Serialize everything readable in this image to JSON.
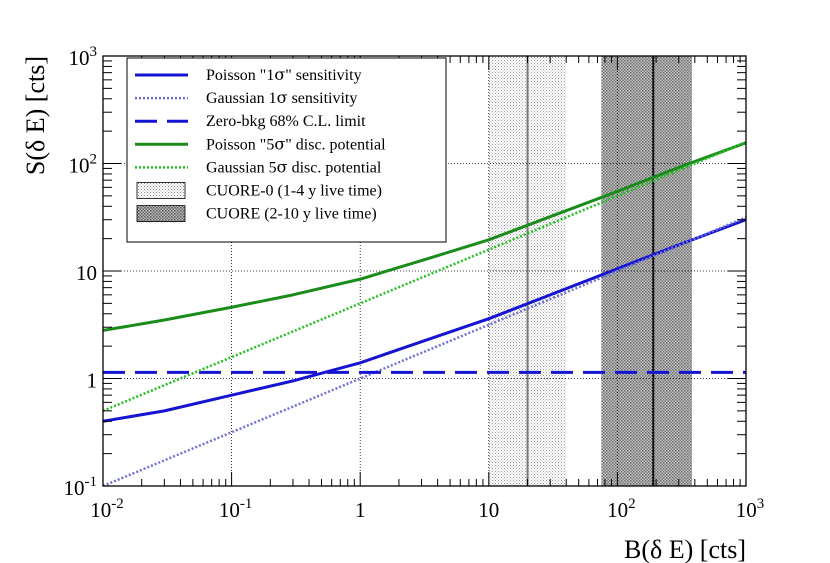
{
  "chart_data": {
    "type": "line",
    "xscale": "log",
    "yscale": "log",
    "xlabel": "B(δ E) [cts]",
    "ylabel": "S(δ E) [cts]",
    "xlim": [
      0.01,
      1000
    ],
    "ylim": [
      0.1,
      1000
    ],
    "grid": true,
    "legend_position": "top-left",
    "x_ticks": [
      {
        "value": 0.01,
        "base": "10",
        "exp": "-2"
      },
      {
        "value": 0.1,
        "base": "10",
        "exp": "-1"
      },
      {
        "value": 1,
        "base": "1",
        "exp": ""
      },
      {
        "value": 10,
        "base": "10",
        "exp": ""
      },
      {
        "value": 100,
        "base": "10",
        "exp": "2"
      },
      {
        "value": 1000,
        "base": "10",
        "exp": "3"
      }
    ],
    "y_ticks": [
      {
        "value": 0.1,
        "base": "10",
        "exp": "-1"
      },
      {
        "value": 1,
        "base": "1",
        "exp": ""
      },
      {
        "value": 10,
        "base": "10",
        "exp": ""
      },
      {
        "value": 100,
        "base": "10",
        "exp": "2"
      },
      {
        "value": 1000,
        "base": "10",
        "exp": "3"
      }
    ],
    "series": [
      {
        "name": "Poisson \"1σ\" sensitivity",
        "label_main": "Poisson \"1",
        "label_sym": "σ",
        "label_tail": "\" sensitivity",
        "color": "#1414d2",
        "style": "solid",
        "x": [
          0.01,
          0.03,
          0.1,
          0.3,
          1,
          3,
          10,
          30,
          100,
          300,
          1000
        ],
        "y": [
          0.4,
          0.5,
          0.7,
          0.95,
          1.4,
          2.2,
          3.6,
          6.0,
          10.5,
          17.5,
          30
        ]
      },
      {
        "name": "Gaussian 1σ sensitivity",
        "label_main": "Gaussian 1",
        "label_sym": "σ",
        "label_tail": " sensitivity",
        "color": "#7070d8",
        "style": "dotted",
        "x": [
          0.01,
          1000
        ],
        "y": [
          0.1,
          31.6
        ]
      },
      {
        "name": "Zero-bkg 68% C.L. limit",
        "label_main": "Zero-bkg 68% C.L. limit",
        "label_sym": "",
        "label_tail": "",
        "color": "#1414d2",
        "style": "dashed",
        "x": [
          0.01,
          1000
        ],
        "y": [
          1.14,
          1.14
        ]
      },
      {
        "name": "Poisson \"5σ\" disc. potential",
        "label_main": "Poisson \"5",
        "label_sym": "σ",
        "label_tail": "\" disc. potential",
        "color": "#1a8c1a",
        "style": "solid",
        "x": [
          0.01,
          0.03,
          0.1,
          0.3,
          1,
          3,
          10,
          30,
          100,
          300,
          1000
        ],
        "y": [
          2.8,
          3.5,
          4.6,
          6.0,
          8.4,
          12.5,
          19.5,
          32,
          55,
          92,
          156
        ]
      },
      {
        "name": "Gaussian 5σ disc. potential",
        "label_main": "Gaussian 5",
        "label_sym": "σ",
        "label_tail": " disc. potential",
        "color": "#22c022",
        "style": "dotted",
        "x": [
          0.01,
          1000
        ],
        "y": [
          0.5,
          158
        ]
      }
    ],
    "bands": [
      {
        "name": "CUORE-0 (1-4 y live time)",
        "x_range": [
          10,
          40
        ],
        "center": 20,
        "pattern": "light"
      },
      {
        "name": "CUORE (2-10 y live time)",
        "x_range": [
          75,
          380
        ],
        "center": 190,
        "pattern": "dark"
      }
    ]
  }
}
